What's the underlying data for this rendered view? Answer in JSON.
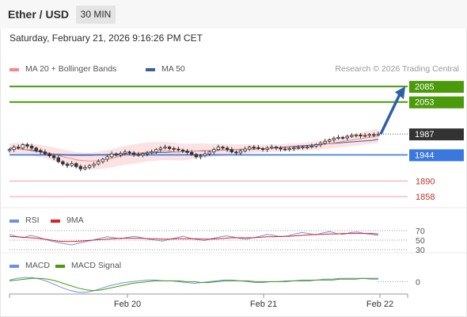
{
  "header": {
    "instrument": "Ether / USD",
    "timeframe": "30 MIN"
  },
  "datetime": "Saturday, February 21, 2026 9:16:26 PM CET",
  "colors": {
    "resistance": "#4a9a0a",
    "support": "#3a78e0",
    "minor_support": "#f4a8a8",
    "current_price_bg": "#333333",
    "arrow": "#2e5fa8",
    "candle_up": "#ffffff",
    "candle_down": "#333333",
    "bollinger_fill": "#fbd9d9",
    "ma20": "#f48a8a",
    "ma50": "#3b5fa0",
    "rsi": "#6f8fe0",
    "rsi_ma": "#e02020",
    "macd": "#6f8fe0",
    "macd_signal": "#4a9a0a"
  },
  "chart_data": [
    {
      "type": "candlestick",
      "panel": "price",
      "ylim": [
        1845,
        2095
      ],
      "x_ticks": [
        "Feb 20",
        "Feb 21",
        "Feb 22"
      ],
      "legend": [
        {
          "label": "MA 20 + Bollinger Bands",
          "color": "#f48a8a"
        },
        {
          "label": "MA 50",
          "color": "#3b5fa0"
        }
      ],
      "watermark": "Research © 2026 Trading Central",
      "levels": [
        {
          "value": 2085,
          "label": "2085",
          "kind": "resistance"
        },
        {
          "value": 2053,
          "label": "2053",
          "kind": "resistance"
        },
        {
          "value": 1987,
          "label": "1987",
          "kind": "current"
        },
        {
          "value": 1944,
          "label": "1944",
          "kind": "support"
        },
        {
          "value": 1890,
          "label": "1890",
          "kind": "minor_support"
        },
        {
          "value": 1858,
          "label": "1858",
          "kind": "minor_support"
        }
      ],
      "closes": [
        1955,
        1960,
        1958,
        1965,
        1962,
        1958,
        1953,
        1950,
        1946,
        1942,
        1938,
        1930,
        1925,
        1922,
        1926,
        1920,
        1915,
        1918,
        1922,
        1925,
        1930,
        1935,
        1940,
        1946,
        1944,
        1947,
        1950,
        1948,
        1945,
        1943,
        1946,
        1948,
        1950,
        1955,
        1958,
        1960,
        1957,
        1956,
        1954,
        1952,
        1949,
        1945,
        1940,
        1942,
        1946,
        1950,
        1955,
        1960,
        1958,
        1955,
        1950,
        1948,
        1952,
        1956,
        1960,
        1959,
        1957,
        1955,
        1958,
        1960,
        1958,
        1956,
        1955,
        1957,
        1958,
        1959,
        1960,
        1960,
        1962,
        1965,
        1968,
        1972,
        1975,
        1978,
        1980,
        1979,
        1982,
        1984,
        1985,
        1983,
        1984,
        1986,
        1985,
        1987
      ],
      "ma20": [
        1955,
        1957,
        1956,
        1955,
        1954,
        1952,
        1949,
        1946,
        1942,
        1939,
        1936,
        1933,
        1932,
        1931,
        1932,
        1934,
        1936,
        1939,
        1942,
        1944,
        1946,
        1948,
        1950,
        1951,
        1952,
        1952,
        1951,
        1950,
        1950,
        1951,
        1952,
        1953,
        1953,
        1954,
        1954,
        1955,
        1955,
        1956,
        1956,
        1957,
        1957,
        1957,
        1958,
        1958,
        1959,
        1960,
        1960,
        1961,
        1962,
        1963,
        1965,
        1967,
        1969,
        1971,
        1973,
        1975,
        1977,
        1979,
        1981,
        1983
      ],
      "ma50": [
        1958,
        1957,
        1956,
        1954,
        1952,
        1950,
        1948,
        1946,
        1945,
        1944,
        1943,
        1943,
        1943,
        1943,
        1944,
        1944,
        1945,
        1945,
        1946,
        1946,
        1947,
        1947,
        1948,
        1948,
        1949,
        1949,
        1950,
        1950,
        1951,
        1951,
        1952,
        1952,
        1953,
        1953,
        1954,
        1954,
        1955,
        1955,
        1956,
        1956,
        1957,
        1957,
        1958,
        1959,
        1960,
        1961,
        1962,
        1963,
        1964,
        1965,
        1966,
        1967,
        1968,
        1969,
        1970,
        1971,
        1972,
        1973,
        1974,
        1976
      ]
    },
    {
      "type": "line",
      "panel": "rsi",
      "ylim": [
        25,
        75
      ],
      "levels": [
        {
          "value": 70,
          "label": "70"
        },
        {
          "value": 50,
          "label": "50"
        },
        {
          "value": 30,
          "label": "30"
        }
      ],
      "legend": [
        {
          "label": "RSI",
          "color": "#6f8fe0"
        },
        {
          "label": "9MA",
          "color": "#e02020"
        }
      ],
      "series": [
        {
          "name": "RSI",
          "values": [
            62,
            58,
            55,
            60,
            57,
            52,
            48,
            45,
            42,
            40,
            44,
            47,
            50,
            54,
            57,
            55,
            53,
            56,
            58,
            55,
            52,
            50,
            48,
            52,
            55,
            58,
            54,
            51,
            49,
            53,
            56,
            59,
            57,
            54,
            52,
            55,
            58,
            62,
            60,
            57,
            59,
            63,
            66,
            64,
            61,
            65,
            68,
            64,
            62,
            66,
            67,
            64,
            62,
            60
          ]
        },
        {
          "name": "9MA",
          "values": [
            58,
            57,
            56,
            55,
            54,
            52,
            50,
            48,
            47,
            47,
            48,
            49,
            50,
            51,
            52,
            53,
            54,
            54,
            54,
            54,
            53,
            53,
            52,
            52,
            53,
            53,
            53,
            53,
            52,
            52,
            53,
            54,
            55,
            55,
            55,
            55,
            56,
            57,
            57,
            58,
            58,
            59,
            60,
            61,
            62,
            62,
            63,
            63,
            64,
            64,
            64,
            64,
            64,
            63
          ]
        }
      ]
    },
    {
      "type": "line",
      "panel": "macd",
      "ylim": [
        -16,
        12
      ],
      "levels": [
        {
          "value": 0,
          "label": "0"
        }
      ],
      "legend": [
        {
          "label": "MACD",
          "color": "#6f8fe0"
        },
        {
          "label": "MACD Signal",
          "color": "#4a9a0a"
        }
      ],
      "series": [
        {
          "name": "MACD",
          "values": [
            2,
            4,
            5,
            5,
            3,
            0,
            -4,
            -8,
            -11,
            -13,
            -13,
            -11,
            -8,
            -5,
            -3,
            -1,
            0,
            1,
            2,
            2,
            1,
            1,
            0,
            -1,
            -2,
            -1,
            0,
            1,
            2,
            2,
            1,
            0,
            -1,
            -1,
            0,
            0,
            1,
            1,
            2,
            2,
            2,
            3,
            3,
            4,
            4,
            4,
            4,
            3,
            3
          ]
        },
        {
          "name": "MACD Signal",
          "values": [
            1,
            2,
            3,
            4,
            4,
            3,
            1,
            -2,
            -5,
            -8,
            -10,
            -11,
            -10,
            -8,
            -6,
            -4,
            -2,
            -1,
            0,
            1,
            1,
            1,
            1,
            0,
            0,
            -1,
            -1,
            0,
            1,
            1,
            1,
            1,
            0,
            0,
            0,
            0,
            0,
            1,
            1,
            1,
            2,
            2,
            2,
            3,
            3,
            3,
            4,
            4,
            4
          ]
        }
      ]
    }
  ]
}
